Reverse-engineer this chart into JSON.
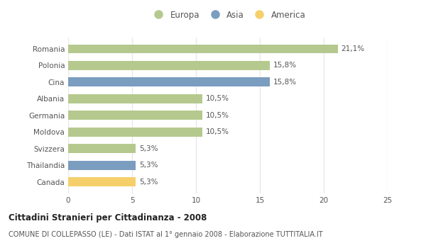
{
  "categories": [
    "Romania",
    "Polonia",
    "Cina",
    "Albania",
    "Germania",
    "Moldova",
    "Svizzera",
    "Thailandia",
    "Canada"
  ],
  "values": [
    21.1,
    15.8,
    15.8,
    10.5,
    10.5,
    10.5,
    5.3,
    5.3,
    5.3
  ],
  "labels": [
    "21,1%",
    "15,8%",
    "15,8%",
    "10,5%",
    "10,5%",
    "10,5%",
    "5,3%",
    "5,3%",
    "5,3%"
  ],
  "colors": [
    "#b5c98e",
    "#b5c98e",
    "#7a9dc0",
    "#b5c98e",
    "#b5c98e",
    "#b5c98e",
    "#b5c98e",
    "#7a9dc0",
    "#f5d06a"
  ],
  "legend": [
    {
      "label": "Europa",
      "color": "#b5c98e"
    },
    {
      "label": "Asia",
      "color": "#7a9dc0"
    },
    {
      "label": "America",
      "color": "#f5d06a"
    }
  ],
  "xlim": [
    0,
    25
  ],
  "xticks": [
    0,
    5,
    10,
    15,
    20,
    25
  ],
  "title_bold": "Cittadini Stranieri per Cittadinanza - 2008",
  "subtitle": "COMUNE DI COLLEPASSO (LE) - Dati ISTAT al 1° gennaio 2008 - Elaborazione TUTTITALIA.IT",
  "background_color": "#ffffff",
  "grid_color": "#e8e8e8",
  "label_fontsize": 7.5,
  "tick_fontsize": 7.5,
  "bar_height": 0.55,
  "title_fontsize": 8.5,
  "subtitle_fontsize": 7.0
}
